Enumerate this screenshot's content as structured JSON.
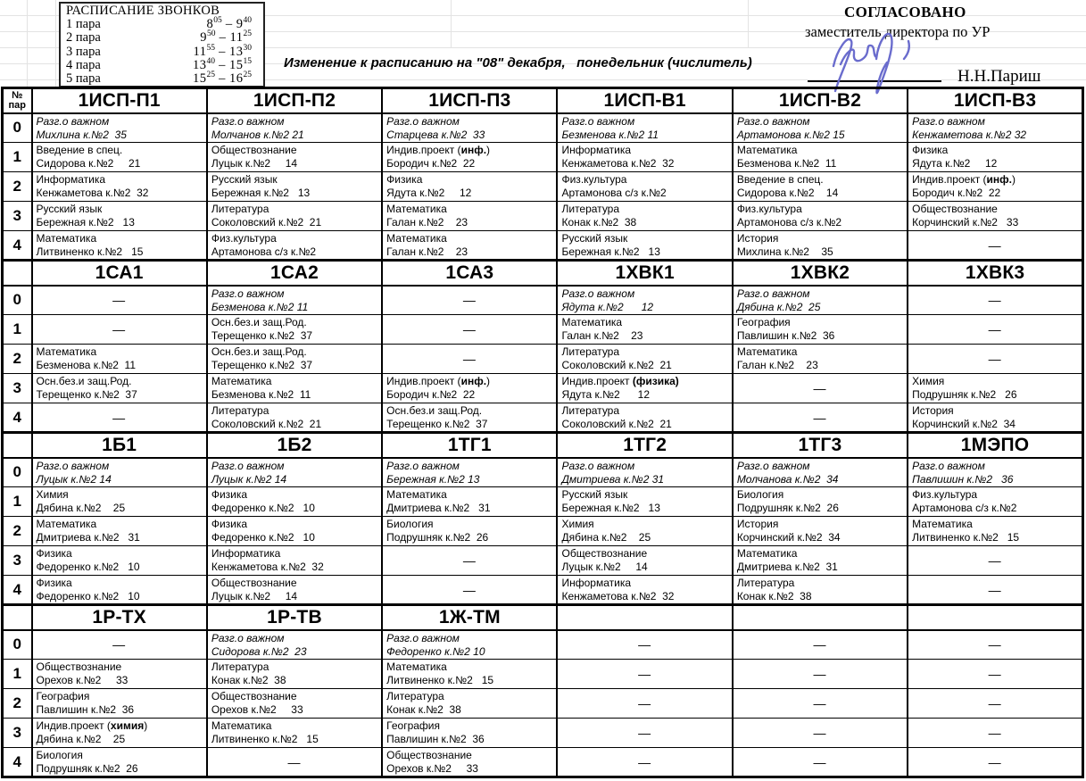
{
  "bells": {
    "title": "РАСПИСАНИЕ ЗВОНКОВ",
    "sep": "–",
    "rows": [
      {
        "label": "1 пара",
        "h1": "8",
        "m1": "05",
        "h2": "9",
        "m2": "40"
      },
      {
        "label": "2 пара",
        "h1": "9",
        "m1": "50",
        "h2": "11",
        "m2": "25"
      },
      {
        "label": "3 пара",
        "h1": "11",
        "m1": "55",
        "h2": "13",
        "m2": "30"
      },
      {
        "label": "4 пара",
        "h1": "13",
        "m1": "40",
        "h2": "15",
        "m2": "15"
      },
      {
        "label": "5 пара",
        "h1": "15",
        "m1": "25",
        "h2": "16",
        "m2": "25"
      }
    ]
  },
  "header": {
    "change_note": "Изменение к расписанию на \"08\" декабря,   понедельник (числитель)",
    "approved_title": "СОГЛАСОВАНО",
    "approved_role": "заместитель директора по УР",
    "signer_name": "Н.Н.Париш",
    "signature_color": "#6a6ccd"
  },
  "table": {
    "corner": {
      "line1": "№",
      "line2": "пар"
    },
    "pair_numbers": [
      "0",
      "1",
      "2",
      "3",
      "4"
    ],
    "dash": "—",
    "sections": [
      {
        "columns": [
          {
            "name": "1ИСП-П1",
            "lessons": [
              {
                "s": "Разг.о важном",
                "t": "Михлина к.№2  35",
                "i": true
              },
              {
                "s": "Введение в спец.",
                "t": "Сидорова к.№2     21"
              },
              {
                "s": "Информатика",
                "t": "Кенжаметова к.№2  32"
              },
              {
                "s": "Русский язык",
                "t": "Бережная к.№2   13"
              },
              {
                "s": "Математика",
                "t": "Литвиненко к.№2   15"
              }
            ]
          },
          {
            "name": "1ИСП-П2",
            "lessons": [
              {
                "s": "Разг.о важном",
                "t": "Молчанов к.№2 21",
                "i": true
              },
              {
                "s": "Обществознание",
                "t": "Луцык к.№2     14"
              },
              {
                "s": "Русский язык",
                "t": "Бережная к.№2   13"
              },
              {
                "s": "Литература",
                "t": "Соколовский к.№2  21"
              },
              {
                "s": "Физ.культура",
                "t": "Артамонова с/з к.№2"
              }
            ]
          },
          {
            "name": "1ИСП-П3",
            "lessons": [
              {
                "s": "Разг.о важном",
                "t": "Старцева к.№2  33",
                "i": true
              },
              {
                "s": "Индив.проект (**инф.**)",
                "t": "Бородич к.№2  22"
              },
              {
                "s": "Физика",
                "t": "Ядута к.№2     12"
              },
              {
                "s": "Математика",
                "t": "Галан к.№2    23"
              },
              {
                "s": "Математика",
                "t": "Галан к.№2    23"
              }
            ]
          },
          {
            "name": "1ИСП-В1",
            "lessons": [
              {
                "s": "Разг.о важном",
                "t": "Безменова к.№2 11",
                "i": true
              },
              {
                "s": "Информатика",
                "t": "Кенжаметова к.№2  32"
              },
              {
                "s": "Физ.культура",
                "t": "Артамонова с/з к.№2"
              },
              {
                "s": "Литература",
                "t": "Конак к.№2  38"
              },
              {
                "s": "Русский язык",
                "t": "Бережная к.№2   13"
              }
            ]
          },
          {
            "name": "1ИСП-В2",
            "lessons": [
              {
                "s": "Разг.о важном",
                "t": "Артамонова к.№2 15",
                "i": true
              },
              {
                "s": "Математика",
                "t": "Безменова к.№2  11"
              },
              {
                "s": "Введение в спец.",
                "t": "Сидорова к.№2    14"
              },
              {
                "s": "Физ.культура",
                "t": "Артамонова с/з к.№2"
              },
              {
                "s": "История",
                "t": "Михлина к.№2    35"
              }
            ]
          },
          {
            "name": "1ИСП-В3",
            "lessons": [
              {
                "s": "Разг.о важном",
                "t": "Кенжаметова к.№2 32",
                "i": true
              },
              {
                "s": "Физика",
                "t": "Ядута к.№2     12"
              },
              {
                "s": "Индив.проект (**инф.**)",
                "t": "Бородич к.№2  22"
              },
              {
                "s": "Обществознание",
                "t": "Корчинский к.№2   33"
              },
              null
            ]
          }
        ]
      },
      {
        "columns": [
          {
            "name": "1СА1",
            "lessons": [
              null,
              null,
              {
                "s": "Математика",
                "t": "Безменова к.№2  11"
              },
              {
                "s": "Осн.без.и защ.Род.",
                "t": "Терещенко к.№2  37"
              },
              null
            ]
          },
          {
            "name": "1СА2",
            "lessons": [
              {
                "s": "Разг.о важном",
                "t": "Безменова к.№2 11",
                "i": true
              },
              {
                "s": "Осн.без.и защ.Род.",
                "t": "Терещенко к.№2  37"
              },
              {
                "s": "Осн.без.и защ.Род.",
                "t": "Терещенко к.№2  37"
              },
              {
                "s": "Математика",
                "t": "Безменова к.№2  11"
              },
              {
                "s": "Литература",
                "t": "Соколовский к.№2  21"
              }
            ]
          },
          {
            "name": "1СА3",
            "lessons": [
              null,
              null,
              null,
              {
                "s": "Индив.проект (**инф.**)",
                "t": "Бородич к.№2  22"
              },
              {
                "s": "Осн.без.и защ.Род.",
                "t": "Терещенко к.№2  37"
              }
            ]
          },
          {
            "name": "1ХВК1",
            "lessons": [
              {
                "s": "Разг.о важном",
                "t": "Ядута к.№2      12",
                "i": true
              },
              {
                "s": "Математика",
                "t": "Галан к.№2    23"
              },
              {
                "s": "Литература",
                "t": "Соколовский к.№2  21"
              },
              {
                "s": "Индив.проект **(физика)**",
                "t": "Ядута к.№2      12"
              },
              {
                "s": "Литература",
                "t": "Соколовский к.№2  21"
              }
            ]
          },
          {
            "name": "1ХВК2",
            "lessons": [
              {
                "s": "Разг.о важном",
                "t": "Дябина к.№2  25",
                "i": true
              },
              {
                "s": "География",
                "t": "Павлишин к.№2  36"
              },
              {
                "s": "Математика",
                "t": "Галан к.№2    23"
              },
              null,
              null
            ]
          },
          {
            "name": "1ХВК3",
            "lessons": [
              null,
              null,
              null,
              {
                "s": "Химия",
                "t": "Подрушняк к.№2   26"
              },
              {
                "s": "История",
                "t": "Корчинский к.№2  34"
              }
            ]
          }
        ]
      },
      {
        "columns": [
          {
            "name": "1Б1",
            "lessons": [
              {
                "s": "Разг.о важном",
                "t": "Луцык к.№2 14",
                "i": true
              },
              {
                "s": "Химия",
                "t": "Дябина к.№2    25"
              },
              {
                "s": "Математика",
                "t": "Дмитриева к.№2   31"
              },
              {
                "s": "Физика",
                "t": "Федоренко к.№2   10"
              },
              {
                "s": "Физика",
                "t": "Федоренко к.№2   10"
              }
            ]
          },
          {
            "name": "1Б2",
            "lessons": [
              {
                "s": "Разг.о важном",
                "t": "Луцык к.№2 14",
                "i": true
              },
              {
                "s": "Физика",
                "t": "Федоренко к.№2   10"
              },
              {
                "s": "Физика",
                "t": "Федоренко к.№2   10"
              },
              {
                "s": "Информатика",
                "t": "Кенжаметова к.№2  32"
              },
              {
                "s": "Обществознание",
                "t": "Луцык к.№2     14"
              }
            ]
          },
          {
            "name": "1ТГ1",
            "lessons": [
              {
                "s": "Разг.о важном",
                "t": "Бережная к.№2 13",
                "i": true
              },
              {
                "s": "Математика",
                "t": "Дмитриева к.№2   31"
              },
              {
                "s": "Биология",
                "t": "Подрушняк к.№2  26"
              },
              null,
              null
            ]
          },
          {
            "name": "1ТГ2",
            "lessons": [
              {
                "s": "Разг.о важном",
                "t": "Дмитриева к.№2 31",
                "i": true
              },
              {
                "s": "Русский язык",
                "t": "Бережная к.№2   13"
              },
              {
                "s": "Химия",
                "t": "Дябина к.№2    25"
              },
              {
                "s": "Обществознание",
                "t": "Луцык к.№2     14"
              },
              {
                "s": "Информатика",
                "t": "Кенжаметова к.№2  32"
              }
            ]
          },
          {
            "name": "1ТГ3",
            "lessons": [
              {
                "s": "Разг.о важном",
                "t": "Молчанова к.№2  34",
                "i": true
              },
              {
                "s": "Биология",
                "t": "Подрушняк к.№2  26"
              },
              {
                "s": "История",
                "t": "Корчинский к.№2  34"
              },
              {
                "s": "Математика",
                "t": "Дмитриева к.№2  31"
              },
              {
                "s": "Литература",
                "t": "Конак к.№2  38"
              }
            ]
          },
          {
            "name": "1МЭПО",
            "lessons": [
              {
                "s": "Разг.о важном",
                "t": "Павлишин к.№2   36",
                "i": true
              },
              {
                "s": "Физ.культура",
                "t": "Артамонова с/з к.№2"
              },
              {
                "s": "Математика",
                "t": "Литвиненко к.№2   15"
              },
              null,
              null
            ]
          }
        ]
      },
      {
        "columns": [
          {
            "name": "1Р-ТХ",
            "lessons": [
              null,
              {
                "s": "Обществознание",
                "t": "Орехов к.№2     33"
              },
              {
                "s": "География",
                "t": "Павлишин к.№2  36"
              },
              {
                "s": "Индив.проект (**химия**)",
                "t": "Дябина к.№2    25"
              },
              {
                "s": "Биология",
                "t": "Подрушняк к.№2  26"
              }
            ]
          },
          {
            "name": "1Р-ТВ",
            "lessons": [
              {
                "s": "Разг.о важном",
                "t": "Сидорова к.№2  23",
                "i": true
              },
              {
                "s": "Литература",
                "t": "Конак к.№2  38"
              },
              {
                "s": "Обществознание",
                "t": "Орехов к.№2     33"
              },
              {
                "s": "Математика",
                "t": "Литвиненко к.№2   15"
              },
              null
            ]
          },
          {
            "name": "1Ж-ТМ",
            "lessons": [
              {
                "s": "Разг.о важном",
                "t": "Федоренко к.№2 10",
                "i": true
              },
              {
                "s": "Математика",
                "t": "Литвиненко к.№2   15"
              },
              {
                "s": "Литература",
                "t": "Конак к.№2  38"
              },
              {
                "s": "География",
                "t": "Павлишин к.№2  36"
              },
              {
                "s": "Обществознание",
                "t": "Орехов к.№2     33"
              }
            ]
          },
          {
            "name": "",
            "lessons": [
              null,
              null,
              null,
              null,
              null
            ]
          },
          {
            "name": "",
            "lessons": [
              null,
              null,
              null,
              null,
              null
            ]
          },
          {
            "name": "",
            "lessons": [
              null,
              null,
              null,
              null,
              null
            ]
          }
        ]
      }
    ]
  }
}
